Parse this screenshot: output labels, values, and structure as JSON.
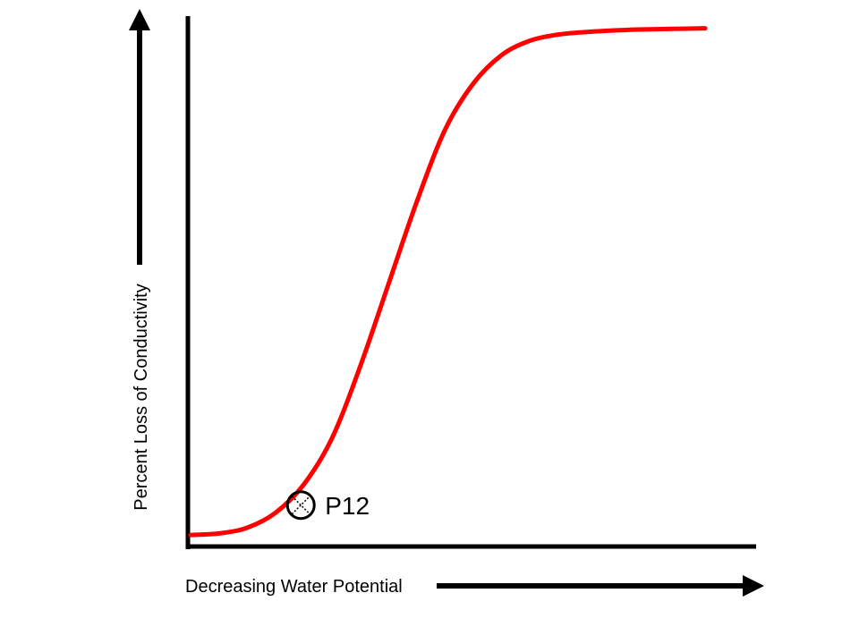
{
  "chart_data": {
    "type": "line",
    "title": "",
    "xlabel": "Decreasing Water Potential",
    "ylabel": "Percent Loss of Conductivity",
    "xlim": [
      0,
      100
    ],
    "ylim": [
      0,
      100
    ],
    "grid": false,
    "series": [
      {
        "color": "#ff0000",
        "x": [
          0,
          5,
          10,
          15,
          20,
          25,
          30,
          35,
          40,
          45,
          50,
          55,
          60,
          65,
          70,
          75,
          80,
          85,
          90,
          91
        ],
        "y": [
          1.2,
          1.5,
          2.6,
          5.5,
          11.0,
          20.0,
          34.0,
          50.0,
          66.0,
          80.0,
          89.0,
          94.5,
          97.3,
          98.5,
          99.0,
          99.3,
          99.5,
          99.6,
          99.7,
          99.7
        ]
      }
    ],
    "annotations": [
      {
        "text": "P12",
        "x": 19.5,
        "y": 7.0,
        "marker": "circle-x"
      }
    ]
  }
}
